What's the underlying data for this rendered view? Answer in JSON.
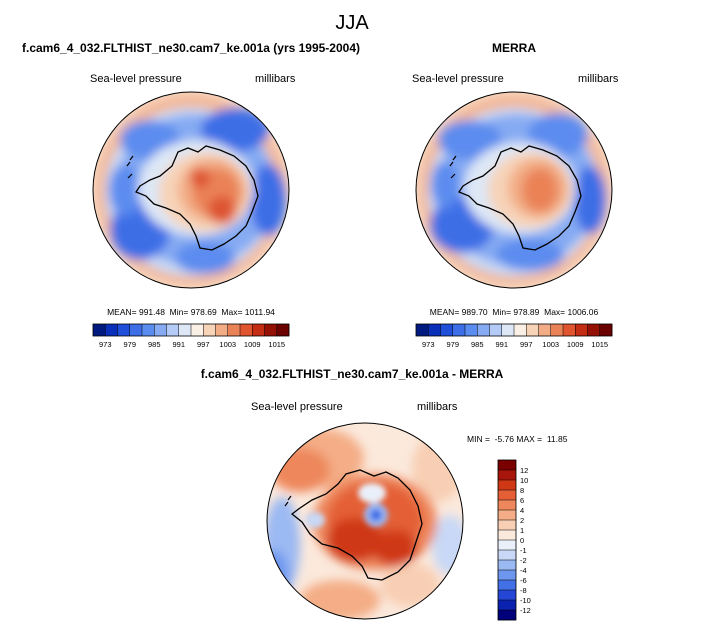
{
  "title": "JJA",
  "colors": {
    "land_outline": "#000000",
    "panel_edge": "#000000"
  },
  "chart_data": [
    {
      "type": "heatmap",
      "projection": "south-polar-stereographic",
      "title": "f.cam6_4_032.FLTHIST_ne30.cam7_ke.001a (yrs 1995-2004)",
      "left_label": "Sea-level pressure",
      "right_label": "millibars",
      "stats": "MEAN= 991.48  Min= 978.69  Max= 1011.94",
      "mean": 991.48,
      "min": 978.69,
      "max": 1011.94,
      "colorbar": {
        "orientation": "horizontal",
        "levels": [
          973,
          976,
          979,
          982,
          985,
          988,
          991,
          994,
          997,
          1000,
          1003,
          1006,
          1009,
          1012,
          1015
        ],
        "tick_labels": [
          "973",
          "979",
          "985",
          "991",
          "997",
          "1003",
          "1009",
          "1015"
        ],
        "colors": [
          "#001a80",
          "#0a2fb8",
          "#1f4fd9",
          "#3d6ee6",
          "#5b8cef",
          "#86abf3",
          "#b3cbf6",
          "#dde7f5",
          "#fbf0e6",
          "#f7d3b8",
          "#f2ad86",
          "#ea8257",
          "#de5530",
          "#c22d14",
          "#941005",
          "#6b0000"
        ]
      }
    },
    {
      "type": "heatmap",
      "projection": "south-polar-stereographic",
      "title": "MERRA",
      "left_label": "Sea-level pressure",
      "right_label": "millibars",
      "stats": "MEAN= 989.70  Min= 978.89  Max= 1006.06",
      "mean": 989.7,
      "min": 978.89,
      "max": 1006.06,
      "colorbar": {
        "orientation": "horizontal",
        "levels": [
          973,
          976,
          979,
          982,
          985,
          988,
          991,
          994,
          997,
          1000,
          1003,
          1006,
          1009,
          1012,
          1015
        ],
        "tick_labels": [
          "973",
          "979",
          "985",
          "991",
          "997",
          "1003",
          "1009",
          "1015"
        ],
        "colors": [
          "#001a80",
          "#0a2fb8",
          "#1f4fd9",
          "#3d6ee6",
          "#5b8cef",
          "#86abf3",
          "#b3cbf6",
          "#dde7f5",
          "#fbf0e6",
          "#f7d3b8",
          "#f2ad86",
          "#ea8257",
          "#de5530",
          "#c22d14",
          "#941005",
          "#6b0000"
        ]
      }
    },
    {
      "type": "heatmap",
      "projection": "south-polar-stereographic",
      "title": "f.cam6_4_032.FLTHIST_ne30.cam7_ke.001a - MERRA",
      "left_label": "Sea-level pressure",
      "right_label": "millibars",
      "stats": "MIN =  -5.76 MAX =  11.85",
      "min": -5.76,
      "max": 11.85,
      "colorbar": {
        "orientation": "vertical",
        "levels": [
          -12,
          -10,
          -8,
          -6,
          -4,
          -2,
          -1,
          0,
          1,
          2,
          4,
          6,
          8,
          10,
          12
        ],
        "tick_labels": [
          "12",
          "10",
          "8",
          "6",
          "4",
          "2",
          "1",
          "0",
          "-1",
          "-2",
          "-4",
          "-6",
          "-8",
          "-10",
          "-12"
        ],
        "colors": [
          "#00007a",
          "#0b22b0",
          "#2346d6",
          "#4270e6",
          "#6d96ee",
          "#9bb9f3",
          "#c8d8f6",
          "#eaf0fa",
          "#fbe9dc",
          "#f8cfb4",
          "#f4ad86",
          "#ee875b",
          "#e45f36",
          "#cf3715",
          "#a8150a",
          "#7a0000"
        ]
      }
    }
  ]
}
